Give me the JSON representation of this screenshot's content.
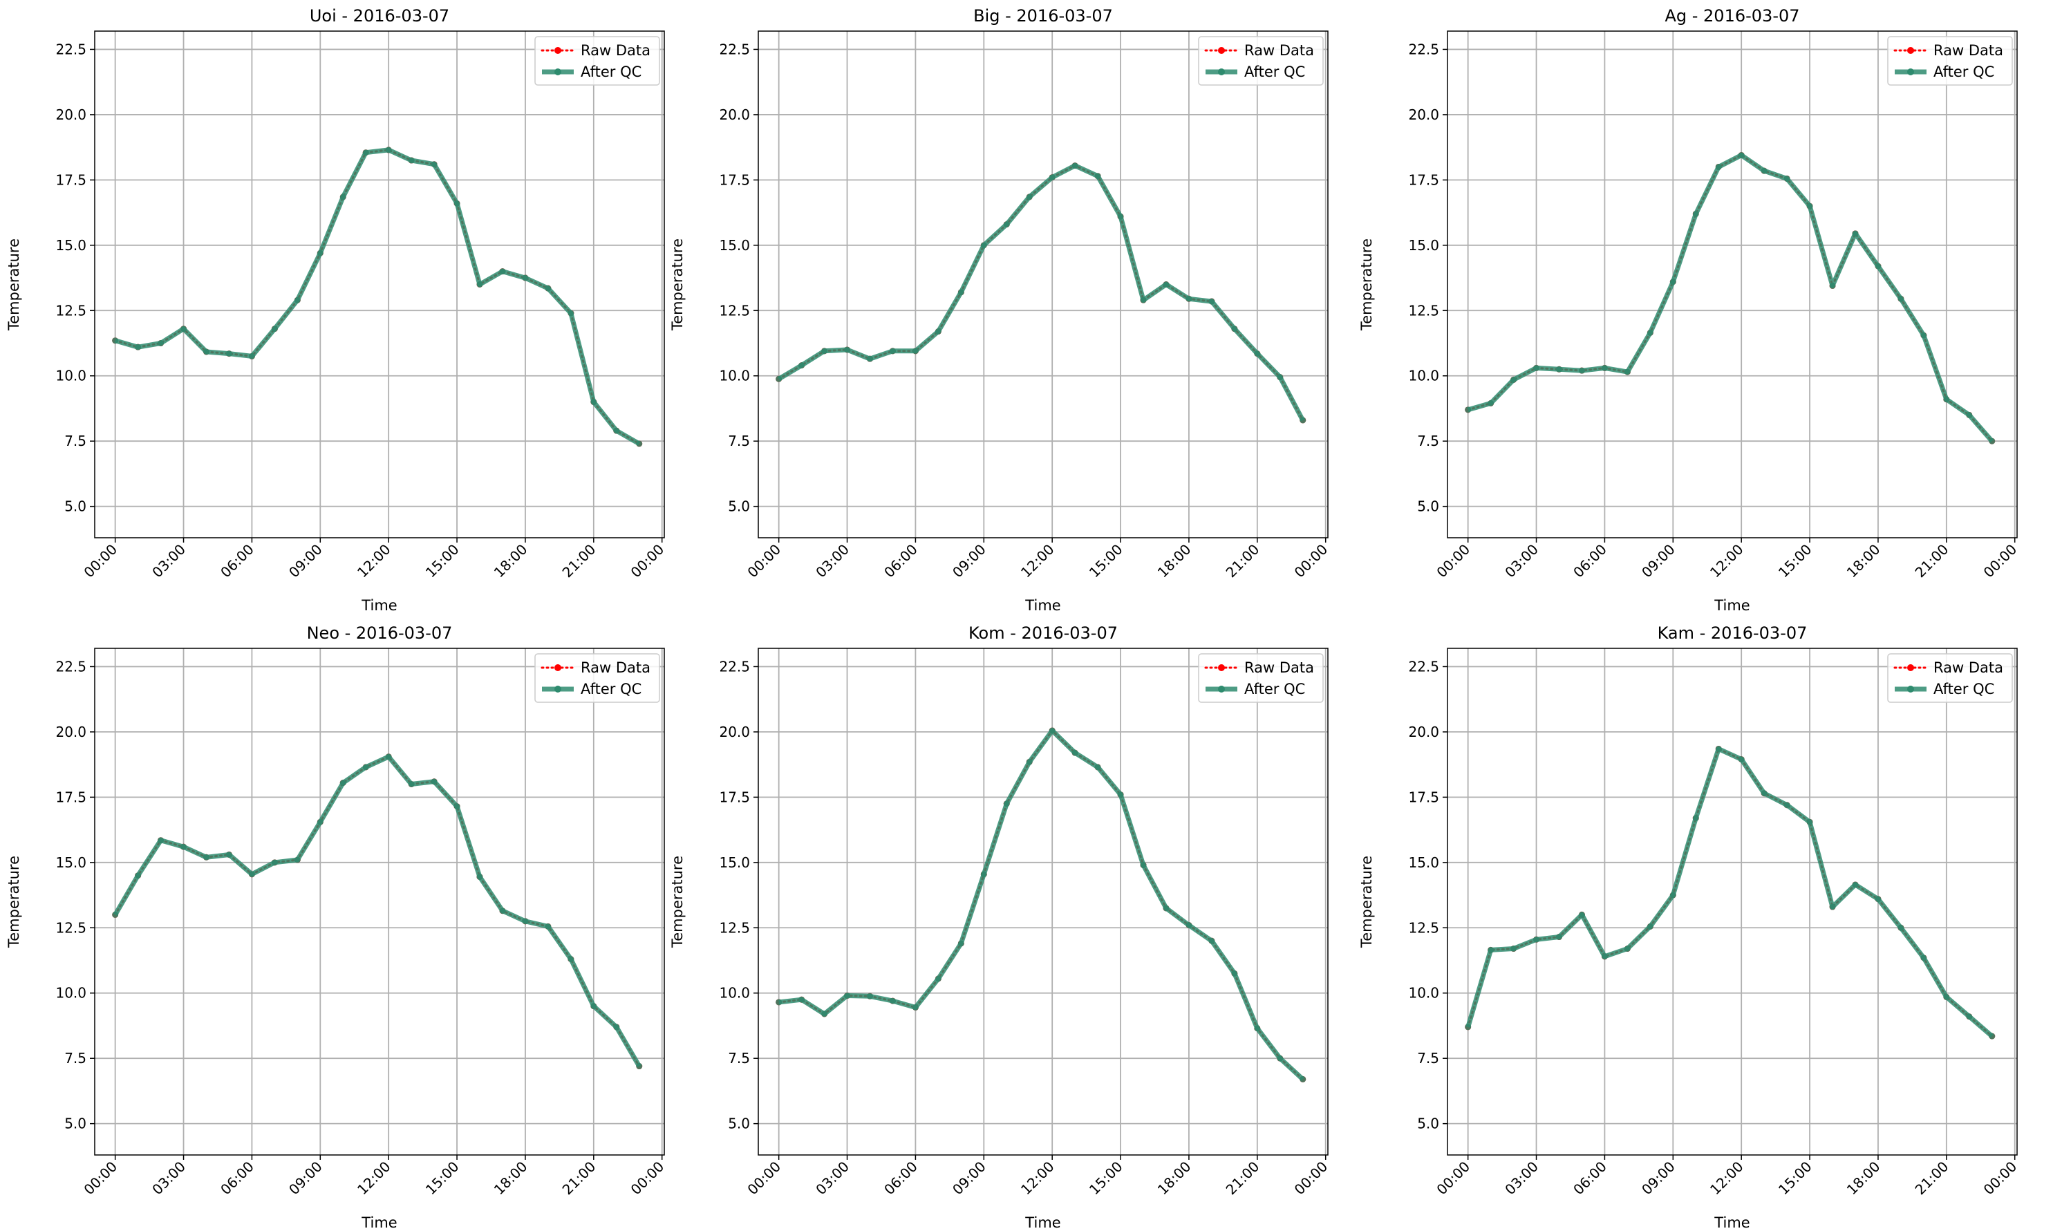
{
  "figure": {
    "background": "#ffffff",
    "raw_color": "#ff0000",
    "qc_color": "#2e8b6e",
    "grid_color": "#b0b0b0"
  },
  "chart_data": [
    {
      "type": "line",
      "title": "Uoi - 2016-03-07",
      "xlabel": "Time",
      "ylabel": "Temperature",
      "x": [
        "00:00",
        "01:00",
        "02:00",
        "03:00",
        "04:00",
        "05:00",
        "06:00",
        "07:00",
        "08:00",
        "09:00",
        "10:00",
        "11:00",
        "12:00",
        "13:00",
        "14:00",
        "15:00",
        "16:00",
        "17:00",
        "18:00",
        "19:00",
        "20:00",
        "21:00",
        "22:00",
        "23:00"
      ],
      "x_ticks": [
        "00:00",
        "03:00",
        "06:00",
        "09:00",
        "12:00",
        "15:00",
        "18:00",
        "21:00",
        "00:00"
      ],
      "xlim_hours": [
        -0.9,
        24.1
      ],
      "ylim": [
        3.8,
        23.2
      ],
      "y_ticks": [
        "5.0",
        "7.5",
        "10.0",
        "12.5",
        "15.0",
        "17.5",
        "20.0",
        "22.5"
      ],
      "grid": true,
      "legend": "top-right",
      "series": [
        {
          "name": "Raw Data",
          "style": "dotted-red-markers",
          "values": [
            11.35,
            11.1,
            11.25,
            11.8,
            10.92,
            10.85,
            10.75,
            11.8,
            12.9,
            14.7,
            16.85,
            18.55,
            18.65,
            18.25,
            18.1,
            16.6,
            13.5,
            14.0,
            13.75,
            13.35,
            12.4,
            9.0,
            7.9,
            7.4
          ]
        },
        {
          "name": "After QC",
          "style": "solid-green-markers",
          "values": [
            11.35,
            11.1,
            11.25,
            11.8,
            10.92,
            10.85,
            10.75,
            11.8,
            12.9,
            14.7,
            16.85,
            18.55,
            18.65,
            18.25,
            18.1,
            16.6,
            13.5,
            14.0,
            13.75,
            13.35,
            12.4,
            9.0,
            7.9,
            7.4
          ]
        }
      ]
    },
    {
      "type": "line",
      "title": "Big - 2016-03-07",
      "xlabel": "Time",
      "ylabel": "Temperature",
      "x": [
        "00:00",
        "01:00",
        "02:00",
        "03:00",
        "04:00",
        "05:00",
        "06:00",
        "07:00",
        "08:00",
        "09:00",
        "10:00",
        "11:00",
        "12:00",
        "13:00",
        "14:00",
        "15:00",
        "16:00",
        "17:00",
        "18:00",
        "19:00",
        "20:00",
        "21:00",
        "22:00",
        "23:00"
      ],
      "x_ticks": [
        "00:00",
        "03:00",
        "06:00",
        "09:00",
        "12:00",
        "15:00",
        "18:00",
        "21:00",
        "00:00"
      ],
      "xlim_hours": [
        -0.9,
        24.1
      ],
      "ylim": [
        3.8,
        23.2
      ],
      "y_ticks": [
        "5.0",
        "7.5",
        "10.0",
        "12.5",
        "15.0",
        "17.5",
        "20.0",
        "22.5"
      ],
      "grid": true,
      "legend": "top-right",
      "series": [
        {
          "name": "Raw Data",
          "style": "dotted-red-markers",
          "values": [
            9.88,
            10.4,
            10.95,
            11.0,
            10.65,
            10.95,
            10.95,
            11.7,
            13.2,
            15.0,
            15.8,
            16.85,
            17.6,
            18.05,
            17.65,
            16.1,
            12.9,
            13.5,
            12.95,
            12.85,
            11.8,
            10.85,
            9.95,
            8.3
          ]
        },
        {
          "name": "After QC",
          "style": "solid-green-markers",
          "values": [
            9.88,
            10.4,
            10.95,
            11.0,
            10.65,
            10.95,
            10.95,
            11.7,
            13.2,
            15.0,
            15.8,
            16.85,
            17.6,
            18.05,
            17.65,
            16.1,
            12.9,
            13.5,
            12.95,
            12.85,
            11.8,
            10.85,
            9.95,
            8.3
          ]
        }
      ]
    },
    {
      "type": "line",
      "title": "Ag - 2016-03-07",
      "xlabel": "Time",
      "ylabel": "Temperature",
      "x": [
        "00:00",
        "01:00",
        "02:00",
        "03:00",
        "04:00",
        "05:00",
        "06:00",
        "07:00",
        "08:00",
        "09:00",
        "10:00",
        "11:00",
        "12:00",
        "13:00",
        "14:00",
        "15:00",
        "16:00",
        "17:00",
        "18:00",
        "19:00",
        "20:00",
        "21:00",
        "22:00",
        "23:00"
      ],
      "x_ticks": [
        "00:00",
        "03:00",
        "06:00",
        "09:00",
        "12:00",
        "15:00",
        "18:00",
        "21:00",
        "00:00"
      ],
      "xlim_hours": [
        -0.9,
        24.1
      ],
      "ylim": [
        3.8,
        23.2
      ],
      "y_ticks": [
        "5.0",
        "7.5",
        "10.0",
        "12.5",
        "15.0",
        "17.5",
        "20.0",
        "22.5"
      ],
      "grid": true,
      "legend": "top-right",
      "series": [
        {
          "name": "Raw Data",
          "style": "dotted-red-markers",
          "values": [
            8.7,
            8.95,
            9.85,
            10.3,
            10.25,
            10.2,
            10.3,
            10.15,
            11.65,
            13.6,
            16.2,
            18.0,
            18.45,
            17.85,
            17.55,
            16.5,
            13.45,
            15.45,
            14.2,
            12.95,
            11.55,
            9.1,
            8.5,
            7.5
          ]
        },
        {
          "name": "After QC",
          "style": "solid-green-markers",
          "values": [
            8.7,
            8.95,
            9.85,
            10.3,
            10.25,
            10.2,
            10.3,
            10.15,
            11.65,
            13.6,
            16.2,
            18.0,
            18.45,
            17.85,
            17.55,
            16.5,
            13.45,
            15.45,
            14.2,
            12.95,
            11.55,
            9.1,
            8.5,
            7.5
          ]
        }
      ]
    },
    {
      "type": "line",
      "title": "Neo - 2016-03-07",
      "xlabel": "Time",
      "ylabel": "Temperature",
      "x": [
        "00:00",
        "01:00",
        "02:00",
        "03:00",
        "04:00",
        "05:00",
        "06:00",
        "07:00",
        "08:00",
        "09:00",
        "10:00",
        "11:00",
        "12:00",
        "13:00",
        "14:00",
        "15:00",
        "16:00",
        "17:00",
        "18:00",
        "19:00",
        "20:00",
        "21:00",
        "22:00",
        "23:00"
      ],
      "x_ticks": [
        "00:00",
        "03:00",
        "06:00",
        "09:00",
        "12:00",
        "15:00",
        "18:00",
        "21:00",
        "00:00"
      ],
      "xlim_hours": [
        -0.9,
        24.1
      ],
      "ylim": [
        3.8,
        23.2
      ],
      "y_ticks": [
        "5.0",
        "7.5",
        "10.0",
        "12.5",
        "15.0",
        "17.5",
        "20.0",
        "22.5"
      ],
      "grid": true,
      "legend": "top-right",
      "series": [
        {
          "name": "Raw Data",
          "style": "dotted-red-markers",
          "values": [
            13.0,
            14.5,
            15.85,
            15.6,
            15.2,
            15.3,
            14.55,
            15.0,
            15.1,
            16.55,
            18.05,
            18.65,
            19.05,
            18.0,
            18.1,
            17.15,
            14.45,
            13.15,
            12.75,
            12.55,
            11.3,
            9.5,
            8.7,
            7.2
          ]
        },
        {
          "name": "After QC",
          "style": "solid-green-markers",
          "values": [
            13.0,
            14.5,
            15.85,
            15.6,
            15.2,
            15.3,
            14.55,
            15.0,
            15.1,
            16.55,
            18.05,
            18.65,
            19.05,
            18.0,
            18.1,
            17.15,
            14.45,
            13.15,
            12.75,
            12.55,
            11.3,
            9.5,
            8.7,
            7.2
          ]
        }
      ]
    },
    {
      "type": "line",
      "title": "Kom - 2016-03-07",
      "xlabel": "Time",
      "ylabel": "Temperature",
      "x": [
        "00:00",
        "01:00",
        "02:00",
        "03:00",
        "04:00",
        "05:00",
        "06:00",
        "07:00",
        "08:00",
        "09:00",
        "10:00",
        "11:00",
        "12:00",
        "13:00",
        "14:00",
        "15:00",
        "16:00",
        "17:00",
        "18:00",
        "19:00",
        "20:00",
        "21:00",
        "22:00",
        "23:00"
      ],
      "x_ticks": [
        "00:00",
        "03:00",
        "06:00",
        "09:00",
        "12:00",
        "15:00",
        "18:00",
        "21:00",
        "00:00"
      ],
      "xlim_hours": [
        -0.9,
        24.1
      ],
      "ylim": [
        3.8,
        23.2
      ],
      "y_ticks": [
        "5.0",
        "7.5",
        "10.0",
        "12.5",
        "15.0",
        "17.5",
        "20.0",
        "22.5"
      ],
      "grid": true,
      "legend": "top-right",
      "series": [
        {
          "name": "Raw Data",
          "style": "dotted-red-markers",
          "values": [
            9.65,
            9.75,
            9.2,
            9.9,
            9.88,
            9.7,
            9.45,
            10.55,
            11.9,
            14.55,
            17.25,
            18.85,
            20.05,
            19.2,
            18.65,
            17.6,
            14.9,
            13.25,
            12.6,
            12.0,
            10.75,
            8.65,
            7.5,
            6.7
          ]
        },
        {
          "name": "After QC",
          "style": "solid-green-markers",
          "values": [
            9.65,
            9.75,
            9.2,
            9.9,
            9.88,
            9.7,
            9.45,
            10.55,
            11.9,
            14.55,
            17.25,
            18.85,
            20.05,
            19.2,
            18.65,
            17.6,
            14.9,
            13.25,
            12.6,
            12.0,
            10.75,
            8.65,
            7.5,
            6.7
          ]
        }
      ]
    },
    {
      "type": "line",
      "title": "Kam - 2016-03-07",
      "xlabel": "Time",
      "ylabel": "Temperature",
      "x": [
        "00:00",
        "01:00",
        "02:00",
        "03:00",
        "04:00",
        "05:00",
        "06:00",
        "07:00",
        "08:00",
        "09:00",
        "10:00",
        "11:00",
        "12:00",
        "13:00",
        "14:00",
        "15:00",
        "16:00",
        "17:00",
        "18:00",
        "19:00",
        "20:00",
        "21:00",
        "22:00",
        "23:00"
      ],
      "x_ticks": [
        "00:00",
        "03:00",
        "06:00",
        "09:00",
        "12:00",
        "15:00",
        "18:00",
        "21:00",
        "00:00"
      ],
      "xlim_hours": [
        -0.9,
        24.1
      ],
      "ylim": [
        3.8,
        23.2
      ],
      "y_ticks": [
        "5.0",
        "7.5",
        "10.0",
        "12.5",
        "15.0",
        "17.5",
        "20.0",
        "22.5"
      ],
      "grid": true,
      "legend": "top-right",
      "series": [
        {
          "name": "Raw Data",
          "style": "dotted-red-markers",
          "values": [
            8.7,
            11.65,
            11.7,
            12.05,
            12.15,
            13.0,
            11.4,
            11.7,
            12.55,
            13.75,
            16.7,
            19.35,
            18.95,
            17.65,
            17.2,
            16.55,
            13.3,
            14.15,
            13.6,
            12.5,
            11.35,
            9.85,
            9.1,
            8.35
          ]
        },
        {
          "name": "After QC",
          "style": "solid-green-markers",
          "values": [
            8.7,
            11.65,
            11.7,
            12.05,
            12.15,
            13.0,
            11.4,
            11.7,
            12.55,
            13.75,
            16.7,
            19.35,
            18.95,
            17.65,
            17.2,
            16.55,
            13.3,
            14.15,
            13.6,
            12.5,
            11.35,
            9.85,
            9.1,
            8.35
          ]
        }
      ]
    }
  ]
}
